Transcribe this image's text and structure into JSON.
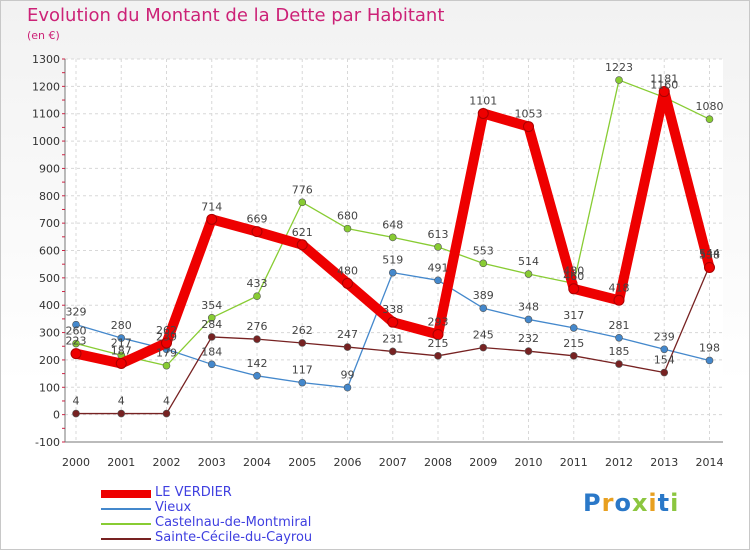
{
  "title": "Evolution du Montant de la Dette par Habitant",
  "unit": "(en €)",
  "logo": {
    "text": "Proxiti",
    "colors": [
      "#2a78c8",
      "#e8a020",
      "#2a78c8",
      "#8cc63f",
      "#e8a020",
      "#2a78c8",
      "#8cc63f"
    ]
  },
  "chart_data": {
    "type": "line",
    "title": "Evolution du Montant de la Dette par Habitant",
    "ylabel": "(en €)",
    "x": [
      "2000",
      "2001",
      "2002",
      "2003",
      "2004",
      "2005",
      "2006",
      "2007",
      "2008",
      "2009",
      "2010",
      "2011",
      "2012",
      "2013",
      "2014"
    ],
    "ylim": [
      -100,
      1300
    ],
    "yticks": [
      -100,
      0,
      100,
      200,
      300,
      400,
      500,
      600,
      700,
      800,
      900,
      1000,
      1100,
      1200,
      1300
    ],
    "grid": true,
    "legend_position": "bottom-left",
    "series": [
      {
        "name": "LE VERDIER",
        "color": "#ee0000",
        "values": [
          223,
          187,
          262,
          714,
          669,
          621,
          480,
          338,
          293,
          1101,
          1053,
          460,
          418,
          1181,
          538
        ]
      },
      {
        "name": "Vieux",
        "color": "#4488cc",
        "values": [
          329,
          280,
          239,
          184,
          142,
          117,
          99,
          519,
          491,
          389,
          348,
          317,
          281,
          239,
          198
        ]
      },
      {
        "name": "Castelnau-de-Montmiral",
        "color": "#88cc33",
        "values": [
          260,
          217,
          179,
          354,
          433,
          776,
          680,
          648,
          613,
          553,
          514,
          480,
          1223,
          1160,
          1080
        ]
      },
      {
        "name": "Sainte-Cécile-du-Cayrou",
        "color": "#772222",
        "values": [
          4,
          4,
          4,
          284,
          276,
          262,
          247,
          231,
          215,
          245,
          232,
          215,
          185,
          154,
          544
        ]
      }
    ]
  }
}
